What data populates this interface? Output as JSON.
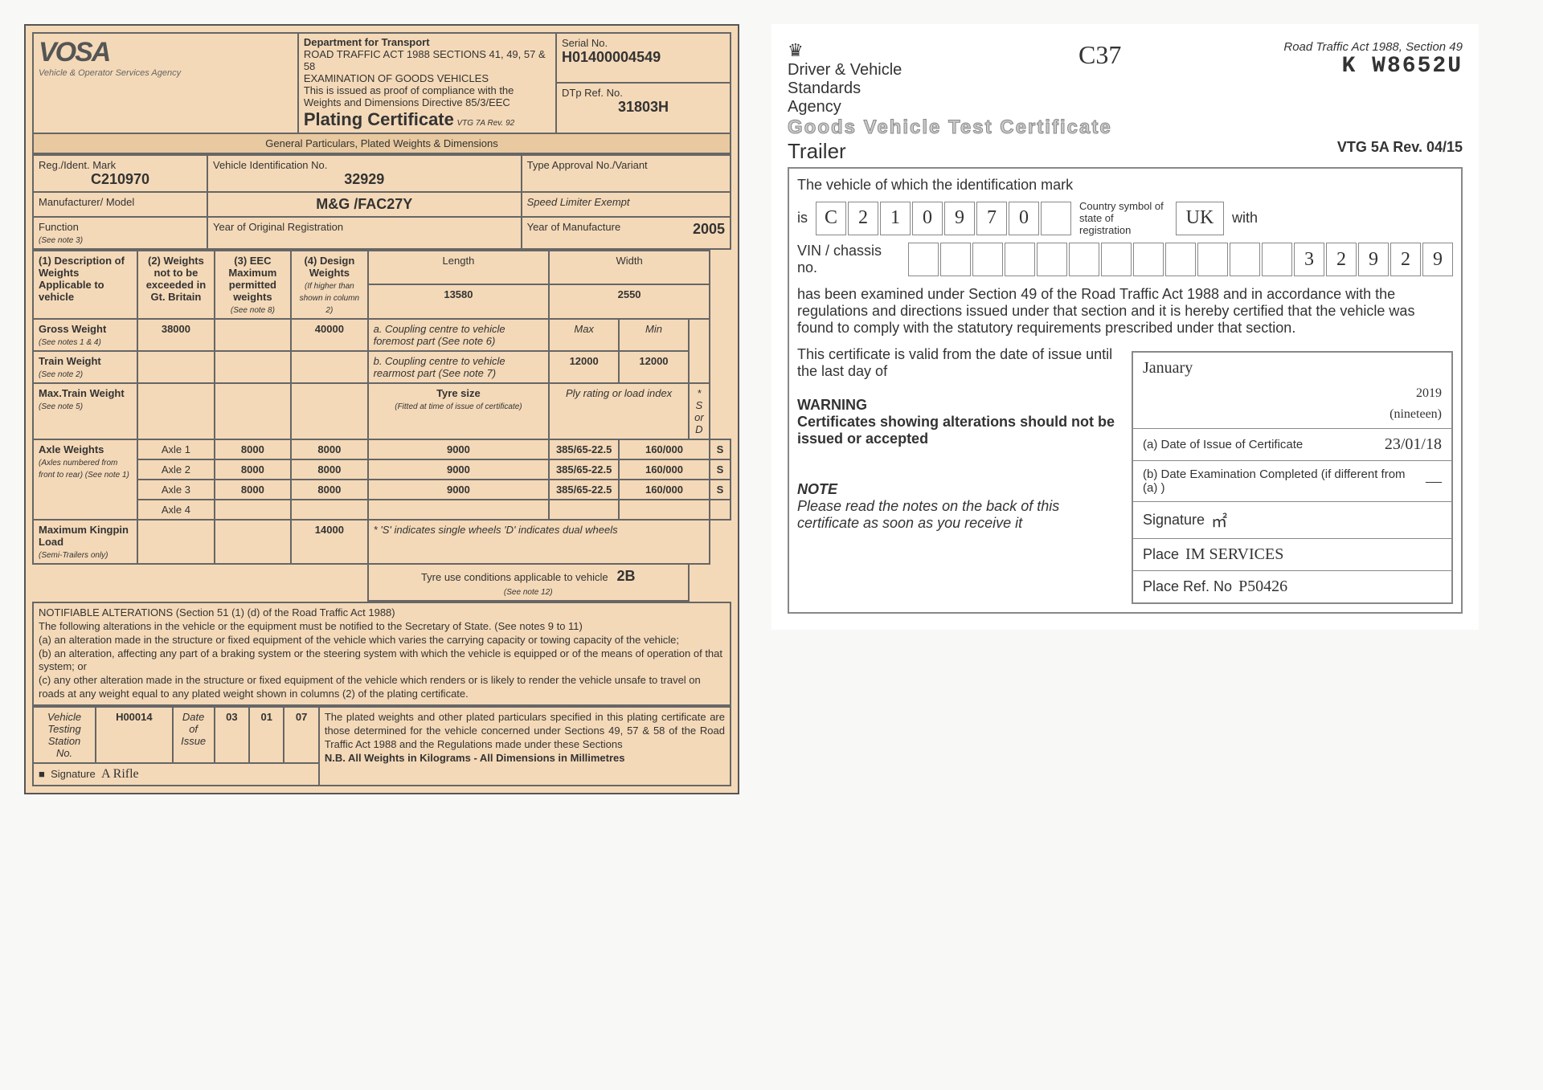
{
  "plating": {
    "logo": "VOSA",
    "logo_sub": "Vehicle & Operator Services Agency",
    "dept_line1": "Department for Transport",
    "dept_line2": "ROAD TRAFFIC ACT 1988 SECTIONS 41, 49, 57 & 58",
    "dept_line3": "EXAMINATION OF GOODS VEHICLES",
    "dept_line4": "This is issued as proof of compliance with the Weights and Dimensions Directive 85/3/EEC",
    "title": "Plating Certificate",
    "title_rev": "VTG 7A Rev. 92",
    "serial_lbl": "Serial No.",
    "serial": "H01400004549",
    "dtp_lbl": "DTp Ref. No.",
    "dtp": "31803H",
    "gp_hdr": "General Particulars, Plated Weights & Dimensions",
    "reg_lbl": "Reg./Ident. Mark",
    "reg": "C210970",
    "vin_lbl": "Vehicle Identification No.",
    "vin": "32929",
    "type_lbl": "Type Approval No./Variant",
    "mfr_lbl": "Manufacturer/ Model",
    "mfr": "M&G /FAC27Y",
    "speed_lbl": "Speed Limiter Exempt",
    "func_lbl": "Function",
    "func_note": "(See note 3)",
    "yor_lbl": "Year of Original Registration",
    "yom_lbl": "Year of Manufacture",
    "yom": "2005",
    "col1_lbl": "(1) Description of Weights Applicable to vehicle",
    "col2_lbl": "(2) Weights not to be exceeded in Gt. Britain",
    "col3_lbl": "(3) EEC Maximum permitted weights",
    "col3_note": "(See note 8)",
    "col4_lbl": "(4) Design Weights",
    "col4_note": "(If higher than shown in column 2)",
    "length_lbl": "Length",
    "length": "13580",
    "width_lbl": "Width",
    "width": "2550",
    "gross_lbl": "Gross Weight",
    "gross_note": "(See notes 1 & 4)",
    "gross_2": "38000",
    "gross_4": "40000",
    "coup_a": "a. Coupling centre to vehicle foremost part (See note 6)",
    "max_lbl": "Max",
    "min_lbl": "Min",
    "train_lbl": "Train Weight",
    "train_note": "(See note 2)",
    "coup_b": "b. Coupling centre to vehicle rearmost part (See note 7)",
    "coup_b_max": "12000",
    "coup_b_min": "12000",
    "maxtrain_lbl": "Max.Train Weight",
    "maxtrain_note": "(See note 5)",
    "tyre_lbl": "Tyre size",
    "tyre_note": "(Fitted at time of issue of certificate)",
    "ply_lbl": "Ply rating or load index",
    "sd_lbl": "* S or D",
    "axle_lbl": "Axle Weights",
    "axle_note": "(Axles numbered from front to rear) (See note 1)",
    "axles": [
      {
        "n": "Axle 1",
        "c2": "8000",
        "c3": "8000",
        "c4": "9000",
        "tyre": "385/65-22.5",
        "ply": "160/000",
        "sd": "S"
      },
      {
        "n": "Axle 2",
        "c2": "8000",
        "c3": "8000",
        "c4": "9000",
        "tyre": "385/65-22.5",
        "ply": "160/000",
        "sd": "S"
      },
      {
        "n": "Axle 3",
        "c2": "8000",
        "c3": "8000",
        "c4": "9000",
        "tyre": "385/65-22.5",
        "ply": "160/000",
        "sd": "S"
      },
      {
        "n": "Axle 4",
        "c2": "",
        "c3": "",
        "c4": "",
        "tyre": "",
        "ply": "",
        "sd": ""
      }
    ],
    "kingpin_lbl": "Maximum Kingpin Load",
    "kingpin_note": "(Semi-Trailers only)",
    "kingpin_val": "14000",
    "sd_note": "* 'S' indicates single wheels  'D' indicates dual wheels",
    "tyreuse_lbl": "Tyre use conditions applicable to vehicle",
    "tyreuse_val": "2B",
    "tyreuse_note": "(See note 12)",
    "notif_title": "NOTIFIABLE ALTERATIONS (Section 51 (1) (d) of the Road Traffic Act 1988)",
    "notif_body": "The following alterations in the vehicle or the equipment must be notified to the Secretary of State. (See notes 9 to 11)\n(a) an alteration made in the structure or fixed equipment of the vehicle which varies the carrying capacity or towing capacity of the vehicle;\n(b) an alteration, affecting any part of a braking system or the steering system with which the vehicle is equipped or of the means of operation of that system; or\n(c) any other alteration made in the structure or fixed equipment of the vehicle which renders or is likely to render the vehicle unsafe to travel on roads at any weight equal to any plated weight shown in columns (2) of the plating certificate.",
    "station_lbl": "Vehicle Testing Station No.",
    "station": "H00014",
    "doi_lbl": "Date of Issue",
    "doi_d": "03",
    "doi_m": "01",
    "doi_y": "07",
    "foot": "The plated weights and other plated particulars specified in this plating certificate are those determined for the vehicle concerned under Sections 49, 57 & 58 of the Road Traffic Act 1988 and the Regulations made under these Sections",
    "foot_nb": "N.B. All Weights in Kilograms - All Dimensions in Millimetres",
    "sig_lbl": "Signature"
  },
  "test": {
    "agency": "Driver & Vehicle Standards Agency",
    "hw_ref": "C37",
    "act": "Road Traffic Act 1988, Section 49",
    "serial": "K W8652U",
    "title": "Goods Vehicle Test Certificate",
    "subtitle": "Trailer",
    "rev": "VTG 5A Rev. 04/15",
    "line1": "The vehicle of which the identification mark",
    "is_lbl": "is",
    "id_boxes": [
      "C",
      "2",
      "1",
      "0",
      "9",
      "7",
      "0",
      ""
    ],
    "country_lbl": "Country symbol of state of registration",
    "country": "UK",
    "with_lbl": "with",
    "vin_lbl": "VIN / chassis no.",
    "vin_boxes": [
      "",
      "",
      "",
      "",
      "",
      "",
      "",
      "",
      "",
      "",
      "",
      "",
      "3",
      "2",
      "9",
      "2",
      "9"
    ],
    "body": "has been examined under Section 49 of the Road Traffic Act 1988 and in accordance with the regulations and directions issued under that section and it is hereby certified that the vehicle was found to comply with the statutory requirements prescribed under that section.",
    "valid_line": "This certificate is valid from the date of issue until the last day of",
    "valid_month": "January",
    "valid_year": "2019",
    "valid_year_words": "(nineteen)",
    "a_lbl": "(a) Date of Issue of Certificate",
    "a_val": "23/01/18",
    "b_lbl": "(b) Date Examination Completed (if different from (a) )",
    "b_val": "—",
    "sig_lbl": "Signature",
    "place_lbl": "Place",
    "place_val": "IM SERVICES",
    "ref_lbl": "Place Ref. No",
    "ref_val": "P50426",
    "warn_title": "WARNING",
    "warn_body": "Certificates showing alterations should not be issued or accepted",
    "note_title": "NOTE",
    "note_body": "Please read the notes on the back of this certificate as soon as you receive it"
  },
  "colors": {
    "plating_bg": "#f4d9b8",
    "border": "#666666"
  }
}
